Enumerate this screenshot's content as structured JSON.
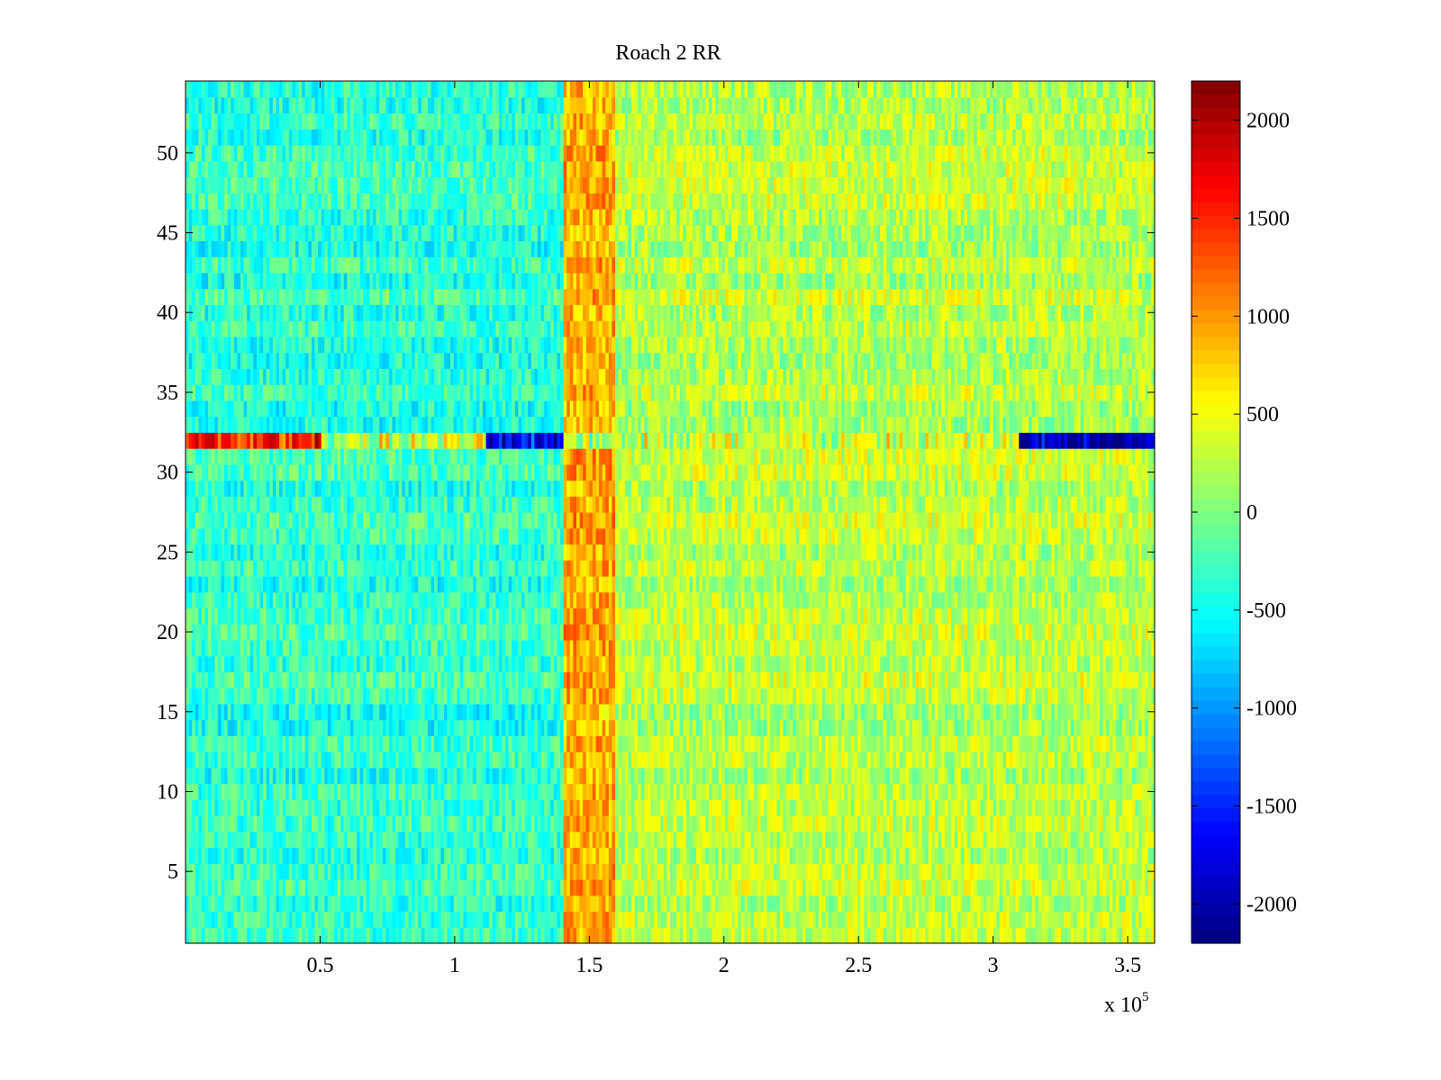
{
  "chart_data": {
    "type": "heatmap",
    "title": "Roach 2 RR",
    "xlabel": "",
    "ylabel": "",
    "x_range": [
      0,
      360000
    ],
    "y_range": [
      0.5,
      54.5
    ],
    "x_ticks": [
      50000,
      100000,
      150000,
      200000,
      250000,
      300000,
      350000
    ],
    "x_tick_labels": [
      "0.5",
      "1",
      "1.5",
      "2",
      "2.5",
      "3",
      "3.5"
    ],
    "x_exponent_label": "x 10",
    "x_exponent_power": "5",
    "y_ticks": [
      5,
      10,
      15,
      20,
      25,
      30,
      35,
      40,
      45,
      50
    ],
    "y_tick_labels": [
      "5",
      "10",
      "15",
      "20",
      "25",
      "30",
      "35",
      "40",
      "45",
      "50"
    ],
    "rows": 54,
    "colormap": "jet",
    "color_range": [
      -2200,
      2200
    ],
    "colorbar_ticks": [
      2000,
      1500,
      1000,
      500,
      0,
      -500,
      -1000,
      -1500,
      -2000
    ],
    "colorbar_tick_labels": [
      "2000",
      "1500",
      "1000",
      "500",
      "0",
      "-500",
      "-1000",
      "-1500",
      "-2000"
    ],
    "regions": [
      {
        "description": "left block, rows 1-54 except 32",
        "x_range": [
          0,
          140000
        ],
        "typical_value": -350
      },
      {
        "description": "transition band with strong positive values",
        "x_range": [
          140000,
          160000
        ],
        "typical_value": 900
      },
      {
        "description": "right block",
        "x_range": [
          160000,
          360000
        ],
        "typical_value": 250
      },
      {
        "description": "row 32 anomaly, early section",
        "row": 32,
        "x_range": [
          0,
          50000
        ],
        "typical_value": 1400
      },
      {
        "description": "row 32 anomaly, strongly negative section",
        "row": 32,
        "x_range": [
          112000,
          140000
        ],
        "typical_value": -1800
      },
      {
        "description": "row 32 anomaly, late negative section",
        "row": 32,
        "x_range": [
          310000,
          360000
        ],
        "typical_value": -2100
      }
    ],
    "grid": false,
    "legend": "colorbar-right"
  }
}
